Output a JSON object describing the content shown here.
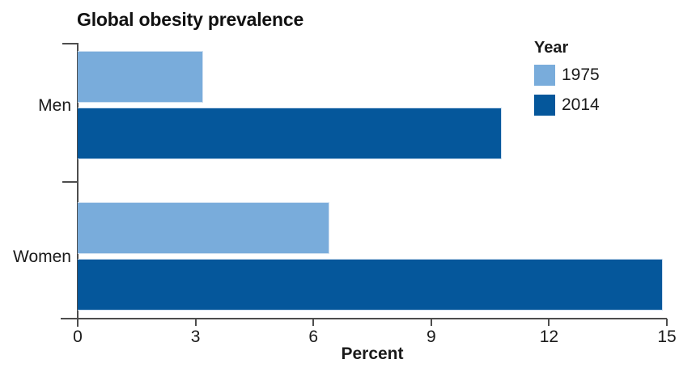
{
  "title": "Global obesity prevalence",
  "colors": {
    "series_1975": "#79acdb",
    "series_2014": "#05579b",
    "axis": "#4d4d4d",
    "text": "#1a1a1a",
    "bar_stroke": "#cfe0f1"
  },
  "legend": {
    "title": "Year",
    "items": [
      {
        "label": "1975",
        "color": "#79acdb"
      },
      {
        "label": "2014",
        "color": "#05579b"
      }
    ]
  },
  "axis": {
    "xlabel": "Percent",
    "xticks": [
      0,
      3,
      6,
      9,
      12,
      15
    ]
  },
  "chart_data": {
    "type": "bar",
    "orientation": "horizontal",
    "title": "Global obesity prevalence",
    "categories": [
      "Men",
      "Women"
    ],
    "series": [
      {
        "name": "1975",
        "color": "#79acdb",
        "values": [
          3.2,
          6.4
        ]
      },
      {
        "name": "2014",
        "color": "#05579b",
        "values": [
          10.8,
          14.9
        ]
      }
    ],
    "xlabel": "Percent",
    "ylabel": "",
    "xlim": [
      0,
      15
    ],
    "xticks": [
      0,
      3,
      6,
      9,
      12,
      15
    ],
    "grid": false,
    "legend_title": "Year",
    "legend_position": "top-right"
  }
}
